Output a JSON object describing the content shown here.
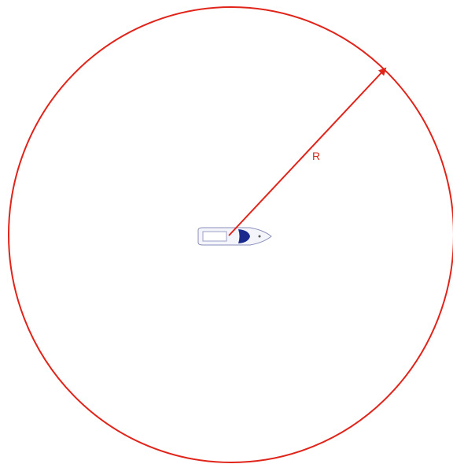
{
  "radius_label": "R"
}
